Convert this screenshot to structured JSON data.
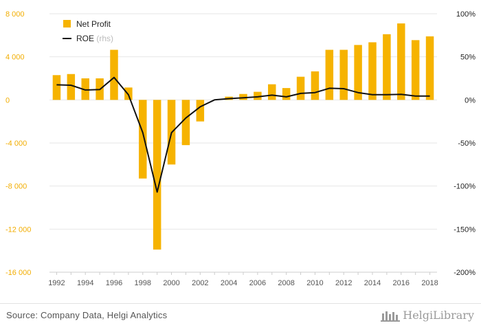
{
  "chart_data": {
    "type": "bar+line",
    "x": [
      1992,
      1993,
      1994,
      1995,
      1996,
      1997,
      1998,
      1999,
      2000,
      2001,
      2002,
      2003,
      2004,
      2005,
      2006,
      2007,
      2008,
      2009,
      2010,
      2011,
      2012,
      2013,
      2014,
      2015,
      2016,
      2017,
      2018
    ],
    "x_tick_labels": [
      "1992",
      "1994",
      "1996",
      "1998",
      "2000",
      "2002",
      "2004",
      "2006",
      "2008",
      "2010",
      "2012",
      "2014",
      "2016",
      "2018"
    ],
    "series": [
      {
        "name": "Net Profit",
        "type": "bar",
        "axis": "left",
        "color": "#f6b300",
        "values": [
          2300,
          2400,
          2000,
          2000,
          4650,
          1150,
          -7300,
          -13900,
          -6000,
          -4200,
          -2000,
          0,
          300,
          550,
          750,
          1450,
          1100,
          2150,
          2650,
          4650,
          4650,
          5100,
          5350,
          6100,
          7100,
          5550,
          5900
        ]
      },
      {
        "name": "ROE",
        "name_suffix": "(rhs)",
        "type": "line",
        "axis": "right",
        "color": "#111111",
        "values": [
          17.5,
          17,
          11.5,
          12,
          26,
          6,
          -38,
          -107,
          -38,
          -21,
          -8,
          0,
          1.5,
          2.5,
          3.5,
          5.5,
          3.5,
          7.5,
          8.5,
          13.5,
          13,
          8.5,
          6,
          6,
          6.5,
          4.5,
          4.5
        ]
      }
    ],
    "y_left": {
      "ylim": [
        -16000,
        8000
      ],
      "ticks": [
        8000,
        4000,
        0,
        -4000,
        -8000,
        -12000,
        -16000
      ],
      "tick_labels": [
        "8 000",
        "4 000",
        "0",
        "-4 000",
        "-8 000",
        "-12 000",
        "-16 000"
      ],
      "color": "#f2ad00"
    },
    "y_right": {
      "ylim": [
        -200,
        100
      ],
      "ticks": [
        100,
        50,
        0,
        -50,
        -100,
        -150,
        -200
      ],
      "tick_labels": [
        "100%",
        "50%",
        "0%",
        "-50%",
        "-100%",
        "-150%",
        "-200%"
      ]
    },
    "legend_position": "top-left",
    "grid": true
  },
  "footer": {
    "source": "Source: Company Data, Helgi Analytics",
    "brand": "HelgiLibrary"
  }
}
